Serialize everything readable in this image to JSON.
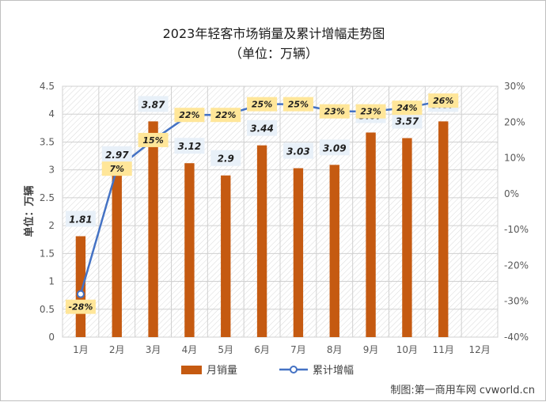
{
  "chart_data": {
    "type": "bar",
    "title": "2023年轻客市场销量及累计增幅走势图",
    "subtitle": "（单位：万辆）",
    "ylabel": "单位：万辆",
    "categories": [
      "1月",
      "2月",
      "3月",
      "4月",
      "5月",
      "6月",
      "7月",
      "8月",
      "9月",
      "10月",
      "11月",
      "12月"
    ],
    "ylim": [
      0,
      4.5
    ],
    "y_ticks": [
      "0",
      "0.5",
      "1",
      "1.5",
      "2",
      "2.5",
      "3",
      "3.5",
      "4",
      "4.5"
    ],
    "y2lim": [
      -40,
      30
    ],
    "y2_ticks": [
      "-40%",
      "-30%",
      "-20%",
      "-10%",
      "0%",
      "10%",
      "20%",
      "30%"
    ],
    "series": [
      {
        "name": "月销量",
        "type": "bar",
        "color": "#c55a11",
        "values": [
          1.81,
          2.97,
          3.87,
          3.12,
          2.9,
          3.44,
          3.03,
          3.09,
          3.67,
          3.57,
          3.87,
          null
        ],
        "labels": [
          "1.81",
          "2.97",
          "3.87",
          "3.12",
          "2.9",
          "3.44",
          "3.03",
          "3.09",
          "3.67",
          "3.57",
          "3.87",
          ""
        ]
      },
      {
        "name": "累计增幅",
        "type": "line",
        "axis": "right",
        "color": "#4472c4",
        "values": [
          -28,
          7,
          15,
          22,
          22,
          25,
          25,
          23,
          23,
          24,
          26,
          null
        ],
        "labels": [
          "-28%",
          "7%",
          "15%",
          "22%",
          "22%",
          "25%",
          "25%",
          "23%",
          "23%",
          "24%",
          "26%",
          ""
        ]
      }
    ],
    "grid": true,
    "legend": "bottom"
  },
  "credit": "制图:第一商用车网 cvworld.cn"
}
